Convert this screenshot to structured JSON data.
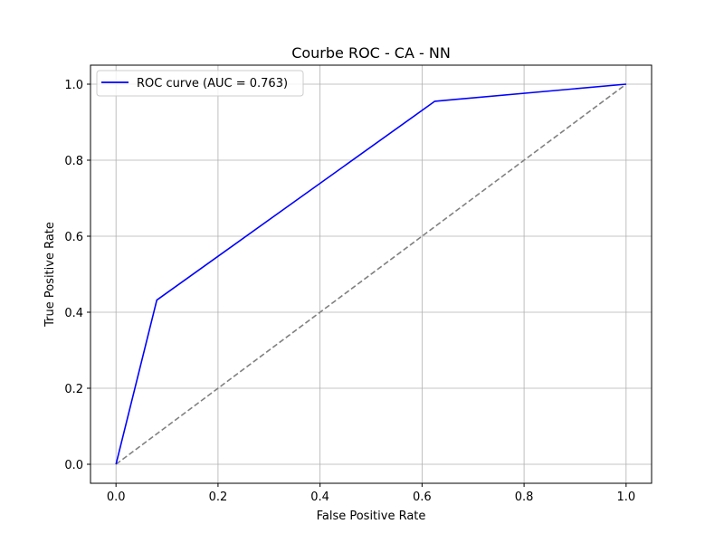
{
  "chart_data": {
    "type": "line",
    "title": "Courbe ROC - CA - NN",
    "xlabel": "False Positive Rate",
    "ylabel": "True Positive Rate",
    "xlim": [
      -0.05,
      1.05
    ],
    "ylim": [
      -0.05,
      1.05
    ],
    "xticks": [
      "0.0",
      "0.2",
      "0.4",
      "0.6",
      "0.8",
      "1.0"
    ],
    "yticks": [
      "0.0",
      "0.2",
      "0.4",
      "0.6",
      "0.8",
      "1.0"
    ],
    "grid": true,
    "legend_position": "top-left",
    "series": [
      {
        "name": "ROC curve (AUC = 0.763)",
        "color": "#0000ff",
        "style": "solid",
        "x": [
          0.0,
          0.08,
          0.625,
          1.0
        ],
        "y": [
          0.0,
          0.432,
          0.955,
          1.0
        ]
      },
      {
        "color": "#808080",
        "style": "dashed",
        "x": [
          0.0,
          1.0
        ],
        "y": [
          0.0,
          1.0
        ]
      }
    ]
  }
}
